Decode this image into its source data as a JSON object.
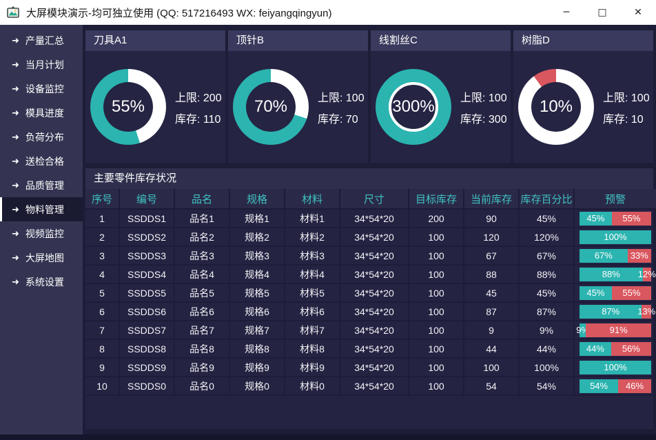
{
  "window": {
    "title": "大屏模块演示-均可独立使用 (QQ: 517216493  WX: feiyangqingyun)",
    "controls": {
      "minimize": "─",
      "maximize": "□",
      "close": "✕"
    }
  },
  "colors": {
    "teal": "#2bb4b0",
    "red": "#d9575f",
    "header_text": "#40c2c2",
    "white": "#ffffff"
  },
  "sidebar": {
    "arrow_icon": "➜",
    "selected_index": 7,
    "items": [
      {
        "label": "产量汇总"
      },
      {
        "label": "当月计划"
      },
      {
        "label": "设备监控"
      },
      {
        "label": "模具进度"
      },
      {
        "label": "负荷分布"
      },
      {
        "label": "送检合格"
      },
      {
        "label": "品质管理"
      },
      {
        "label": "物料管理"
      },
      {
        "label": "视频监控"
      },
      {
        "label": "大屏地图"
      },
      {
        "label": "系统设置"
      }
    ]
  },
  "panels": [
    {
      "title": "刀具A1",
      "percent": 55,
      "percent_label": "55%",
      "limit_label": "上限: 200",
      "stock_label": "库存: 110",
      "color": "#2bb4b0"
    },
    {
      "title": "顶针B",
      "percent": 70,
      "percent_label": "70%",
      "limit_label": "上限: 100",
      "stock_label": "库存: 70",
      "color": "#2bb4b0"
    },
    {
      "title": "线割丝C",
      "percent": 300,
      "percent_label": "300%",
      "limit_label": "上限: 100",
      "stock_label": "库存: 300",
      "color": "#2bb4b0"
    },
    {
      "title": "树脂D",
      "percent": 10,
      "percent_label": "10%",
      "limit_label": "上限: 100",
      "stock_label": "库存: 10",
      "color": "#d9575f"
    }
  ],
  "table": {
    "title": "主要零件库存状况",
    "columns": [
      "序号",
      "编号",
      "品名",
      "规格",
      "材料",
      "尺寸",
      "目标库存",
      "当前库存",
      "库存百分比",
      "预警"
    ],
    "rows": [
      {
        "cells": [
          "1",
          "SSDDS1",
          "品名1",
          "规格1",
          "材料1",
          "34*54*20",
          "200",
          "90",
          "45%"
        ],
        "bar": {
          "ok": 45,
          "ok_label": "45%",
          "warn": 55,
          "warn_label": "55%"
        }
      },
      {
        "cells": [
          "2",
          "SSDDS2",
          "品名2",
          "规格2",
          "材料2",
          "34*54*20",
          "100",
          "120",
          "120%"
        ],
        "bar": {
          "ok": 100,
          "ok_label": "100%",
          "warn": null,
          "warn_label": ""
        }
      },
      {
        "cells": [
          "3",
          "SSDDS3",
          "品名3",
          "规格3",
          "材料3",
          "34*54*20",
          "100",
          "67",
          "67%"
        ],
        "bar": {
          "ok": 67,
          "ok_label": "67%",
          "warn": 33,
          "warn_label": "33%"
        }
      },
      {
        "cells": [
          "4",
          "SSDDS4",
          "品名4",
          "规格4",
          "材料4",
          "34*54*20",
          "100",
          "88",
          "88%"
        ],
        "bar": {
          "ok": 88,
          "ok_label": "88%",
          "warn": 12,
          "warn_label": "12%"
        }
      },
      {
        "cells": [
          "5",
          "SSDDS5",
          "品名5",
          "规格5",
          "材料5",
          "34*54*20",
          "100",
          "45",
          "45%"
        ],
        "bar": {
          "ok": 45,
          "ok_label": "45%",
          "warn": 55,
          "warn_label": "55%"
        }
      },
      {
        "cells": [
          "6",
          "SSDDS6",
          "品名6",
          "规格6",
          "材料6",
          "34*54*20",
          "100",
          "87",
          "87%"
        ],
        "bar": {
          "ok": 87,
          "ok_label": "87%",
          "warn": 13,
          "warn_label": "13%"
        }
      },
      {
        "cells": [
          "7",
          "SSDDS7",
          "品名7",
          "规格7",
          "材料7",
          "34*54*20",
          "100",
          "9",
          "9%"
        ],
        "bar": {
          "ok": 9,
          "ok_label": "9%",
          "warn": 91,
          "warn_label": "91%"
        }
      },
      {
        "cells": [
          "8",
          "SSDDS8",
          "品名8",
          "规格8",
          "材料8",
          "34*54*20",
          "100",
          "44",
          "44%"
        ],
        "bar": {
          "ok": 44,
          "ok_label": "44%",
          "warn": 56,
          "warn_label": "56%"
        }
      },
      {
        "cells": [
          "9",
          "SSDDS9",
          "品名9",
          "规格9",
          "材料9",
          "34*54*20",
          "100",
          "100",
          "100%"
        ],
        "bar": {
          "ok": 100,
          "ok_label": "100%",
          "warn": null,
          "warn_label": ""
        }
      },
      {
        "cells": [
          "10",
          "SSDDS0",
          "品名0",
          "规格0",
          "材料0",
          "34*54*20",
          "100",
          "54",
          "54%"
        ],
        "bar": {
          "ok": 54,
          "ok_label": "54%",
          "warn": 46,
          "warn_label": "46%"
        }
      }
    ]
  }
}
